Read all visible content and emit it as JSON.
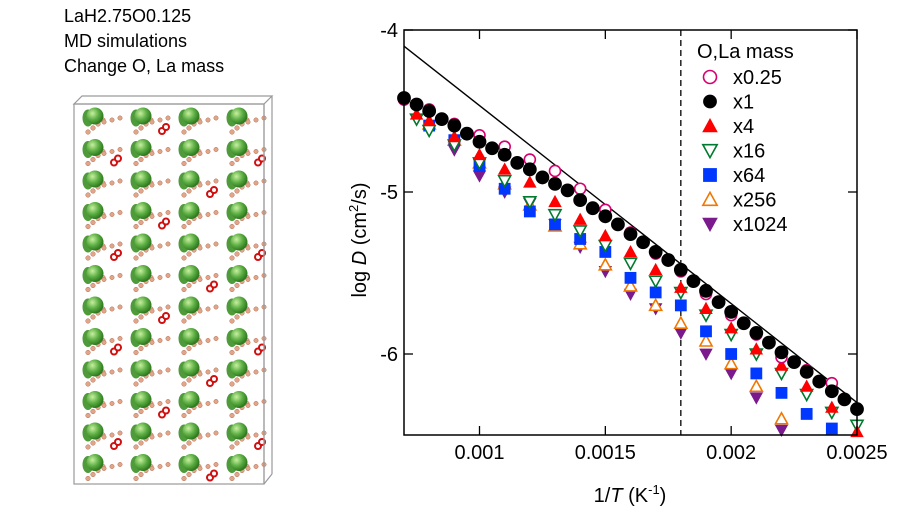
{
  "caption": {
    "line1": "LaH2.75O0.125",
    "line2": "MD simulations",
    "line3": "Change O, La mass"
  },
  "chart_data": {
    "type": "scatter",
    "xlabel_main": "1/",
    "xlabel_var": "T",
    "xlabel_unit": " (K",
    "xlabel_sup": "-1",
    "xlabel_close": ")",
    "ylabel_main": "log ",
    "ylabel_var": "D",
    "ylabel_unit": " (cm",
    "ylabel_sup": "2",
    "ylabel_close": "/s)",
    "xlim": [
      0.0007,
      0.0025
    ],
    "ylim": [
      -6.5,
      -4.0
    ],
    "x_ticks": [
      0.001,
      0.0015,
      0.002,
      0.0025
    ],
    "x_tick_labels": [
      "0.001",
      "0.0015",
      "0.002",
      "0.0025"
    ],
    "y_ticks": [
      -4,
      -5,
      -6
    ],
    "y_tick_labels": [
      "-4",
      "-5",
      "-6"
    ],
    "legend_title": "O,La mass",
    "legend_position": "top-right",
    "vline_x": 0.0018,
    "fit_line": {
      "x": [
        0.0007,
        0.0025
      ],
      "y": [
        -4.1,
        -6.3
      ]
    },
    "series": [
      {
        "name": "x0.25",
        "marker": "circle-open",
        "color": "#d6006f",
        "x": [
          0.0007,
          0.0008,
          0.0009,
          0.001,
          0.0011,
          0.0012,
          0.0013,
          0.0014,
          0.0015,
          0.0016,
          0.0017,
          0.0018,
          0.0019,
          0.002,
          0.0021,
          0.0022,
          0.0023,
          0.0024
        ],
        "y": [
          -4.43,
          -4.49,
          -4.58,
          -4.65,
          -4.72,
          -4.8,
          -4.87,
          -4.98,
          -5.11,
          -5.25,
          -5.38,
          -5.49,
          -5.63,
          -5.76,
          -5.88,
          -6.02,
          -6.1,
          -6.18
        ]
      },
      {
        "name": "x1",
        "marker": "circle-filled",
        "color": "#000000",
        "x": [
          0.0007,
          0.00075,
          0.0008,
          0.00085,
          0.0009,
          0.00095,
          0.001,
          0.00105,
          0.0011,
          0.00115,
          0.0012,
          0.00125,
          0.0013,
          0.00135,
          0.0014,
          0.00145,
          0.0015,
          0.00155,
          0.0016,
          0.00165,
          0.0017,
          0.00175,
          0.0018,
          0.00185,
          0.0019,
          0.00195,
          0.002,
          0.00205,
          0.0021,
          0.00215,
          0.0022,
          0.00225,
          0.0023,
          0.00235,
          0.0024,
          0.00245,
          0.0025
        ],
        "y": [
          -4.42,
          -4.46,
          -4.5,
          -4.55,
          -4.59,
          -4.64,
          -4.69,
          -4.73,
          -4.77,
          -4.82,
          -4.86,
          -4.91,
          -4.95,
          -4.99,
          -5.05,
          -5.1,
          -5.15,
          -5.2,
          -5.26,
          -5.31,
          -5.37,
          -5.42,
          -5.48,
          -5.55,
          -5.61,
          -5.68,
          -5.74,
          -5.81,
          -5.87,
          -5.93,
          -5.99,
          -6.05,
          -6.11,
          -6.17,
          -6.23,
          -6.28,
          -6.34
        ]
      },
      {
        "name": "x4",
        "marker": "triangle-up-filled",
        "color": "#ff0000",
        "x": [
          0.00075,
          0.0008,
          0.0009,
          0.001,
          0.0011,
          0.0012,
          0.0013,
          0.0014,
          0.0015,
          0.0016,
          0.0017,
          0.0018,
          0.0019,
          0.002,
          0.0021,
          0.0022,
          0.0023,
          0.0024,
          0.0025
        ],
        "y": [
          -4.52,
          -4.56,
          -4.66,
          -4.77,
          -4.86,
          -4.94,
          -5.06,
          -5.17,
          -5.27,
          -5.37,
          -5.48,
          -5.59,
          -5.72,
          -5.84,
          -5.97,
          -6.07,
          -6.2,
          -6.33,
          -6.48
        ]
      },
      {
        "name": "x16",
        "marker": "triangle-down-open",
        "color": "#007a2e",
        "x": [
          0.00075,
          0.0008,
          0.0009,
          0.001,
          0.0011,
          0.0012,
          0.0013,
          0.0014,
          0.0015,
          0.0016,
          0.0017,
          0.0018,
          0.0019,
          0.002,
          0.0021,
          0.0022,
          0.0023,
          0.0024,
          0.0025
        ],
        "y": [
          -4.55,
          -4.62,
          -4.71,
          -4.82,
          -4.93,
          -5.06,
          -5.14,
          -5.24,
          -5.33,
          -5.44,
          -5.55,
          -5.62,
          -5.76,
          -5.88,
          -6.0,
          -6.12,
          -6.25,
          -6.36,
          -6.44
        ]
      },
      {
        "name": "x64",
        "marker": "square-filled",
        "color": "#0038ff",
        "x": [
          0.0008,
          0.0009,
          0.001,
          0.0011,
          0.0012,
          0.0013,
          0.0014,
          0.0015,
          0.0016,
          0.0017,
          0.0018,
          0.0019,
          0.002,
          0.0021,
          0.0022,
          0.0023,
          0.0024
        ],
        "y": [
          -4.59,
          -4.68,
          -4.84,
          -4.98,
          -5.12,
          -5.2,
          -5.29,
          -5.37,
          -5.53,
          -5.62,
          -5.7,
          -5.86,
          -6.0,
          -6.12,
          -6.24,
          -6.37,
          -6.46
        ]
      },
      {
        "name": "x256",
        "marker": "triangle-up-open",
        "color": "#f07800",
        "x": [
          0.0008,
          0.0009,
          0.001,
          0.0011,
          0.0012,
          0.0013,
          0.0014,
          0.0015,
          0.0016,
          0.0017,
          0.0018,
          0.0019,
          0.002,
          0.0021,
          0.0022
        ],
        "y": [
          -4.58,
          -4.68,
          -4.82,
          -4.95,
          -5.08,
          -5.21,
          -5.32,
          -5.45,
          -5.58,
          -5.7,
          -5.81,
          -5.92,
          -6.06,
          -6.2,
          -6.4
        ]
      },
      {
        "name": "x1024",
        "marker": "triangle-down-filled",
        "color": "#7a1a8c",
        "x": [
          0.0008,
          0.0009,
          0.001,
          0.0011,
          0.0012,
          0.0013,
          0.0014,
          0.0015,
          0.0016,
          0.0017,
          0.0018,
          0.0019,
          0.002,
          0.0021,
          0.0022
        ],
        "y": [
          -4.62,
          -4.74,
          -4.9,
          -5.0,
          -5.07,
          -5.2,
          -5.34,
          -5.49,
          -5.63,
          -5.72,
          -5.87,
          -6.0,
          -6.12,
          -6.27,
          -6.47
        ]
      }
    ]
  }
}
